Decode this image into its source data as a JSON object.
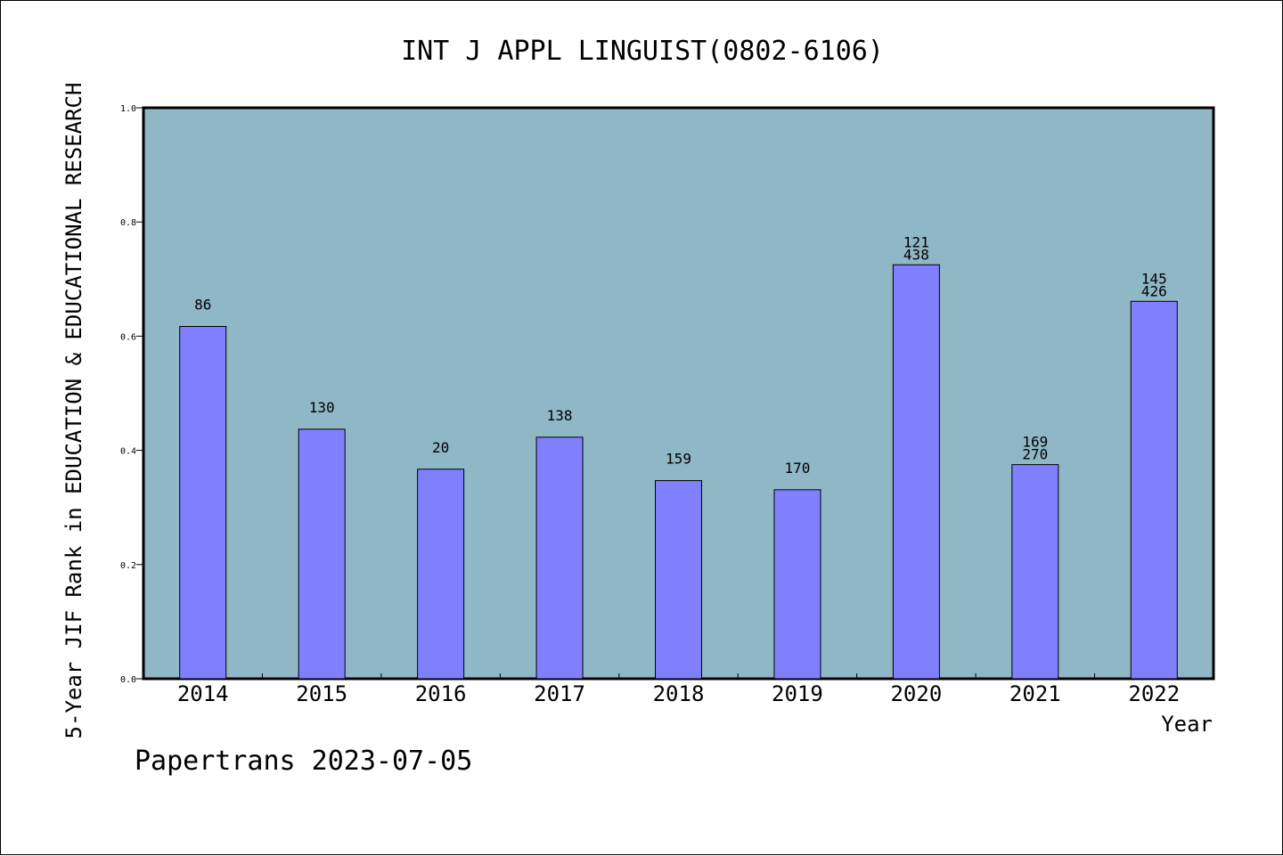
{
  "chart_data": {
    "type": "bar",
    "title": "INT J APPL LINGUIST(0802-6106)",
    "xlabel": "Year",
    "ylabel": "5-Year JIF Rank in EDUCATION & EDUCATIONAL RESEARCH",
    "ylim": [
      0,
      1.0
    ],
    "yticks": [
      "0.0",
      "0.2",
      "0.4",
      "0.6",
      "0.8",
      "1.0"
    ],
    "grid": false,
    "plot_background": "#8FB7C5",
    "bar_color": "#8080FF",
    "categories": [
      "2014",
      "2015",
      "2016",
      "2017",
      "2018",
      "2019",
      "2020",
      "2021",
      "2022"
    ],
    "values": [
      0.617,
      0.437,
      0.367,
      0.423,
      0.347,
      0.331,
      0.725,
      0.375,
      0.661
    ],
    "bar_labels": [
      [
        "86"
      ],
      [
        "130"
      ],
      [
        "20"
      ],
      [
        "138"
      ],
      [
        "159"
      ],
      [
        "170"
      ],
      [
        "121",
        "438"
      ],
      [
        "169",
        "270"
      ],
      [
        "145",
        "426"
      ]
    ]
  },
  "footer": {
    "text": "Papertrans 2023-07-05"
  }
}
